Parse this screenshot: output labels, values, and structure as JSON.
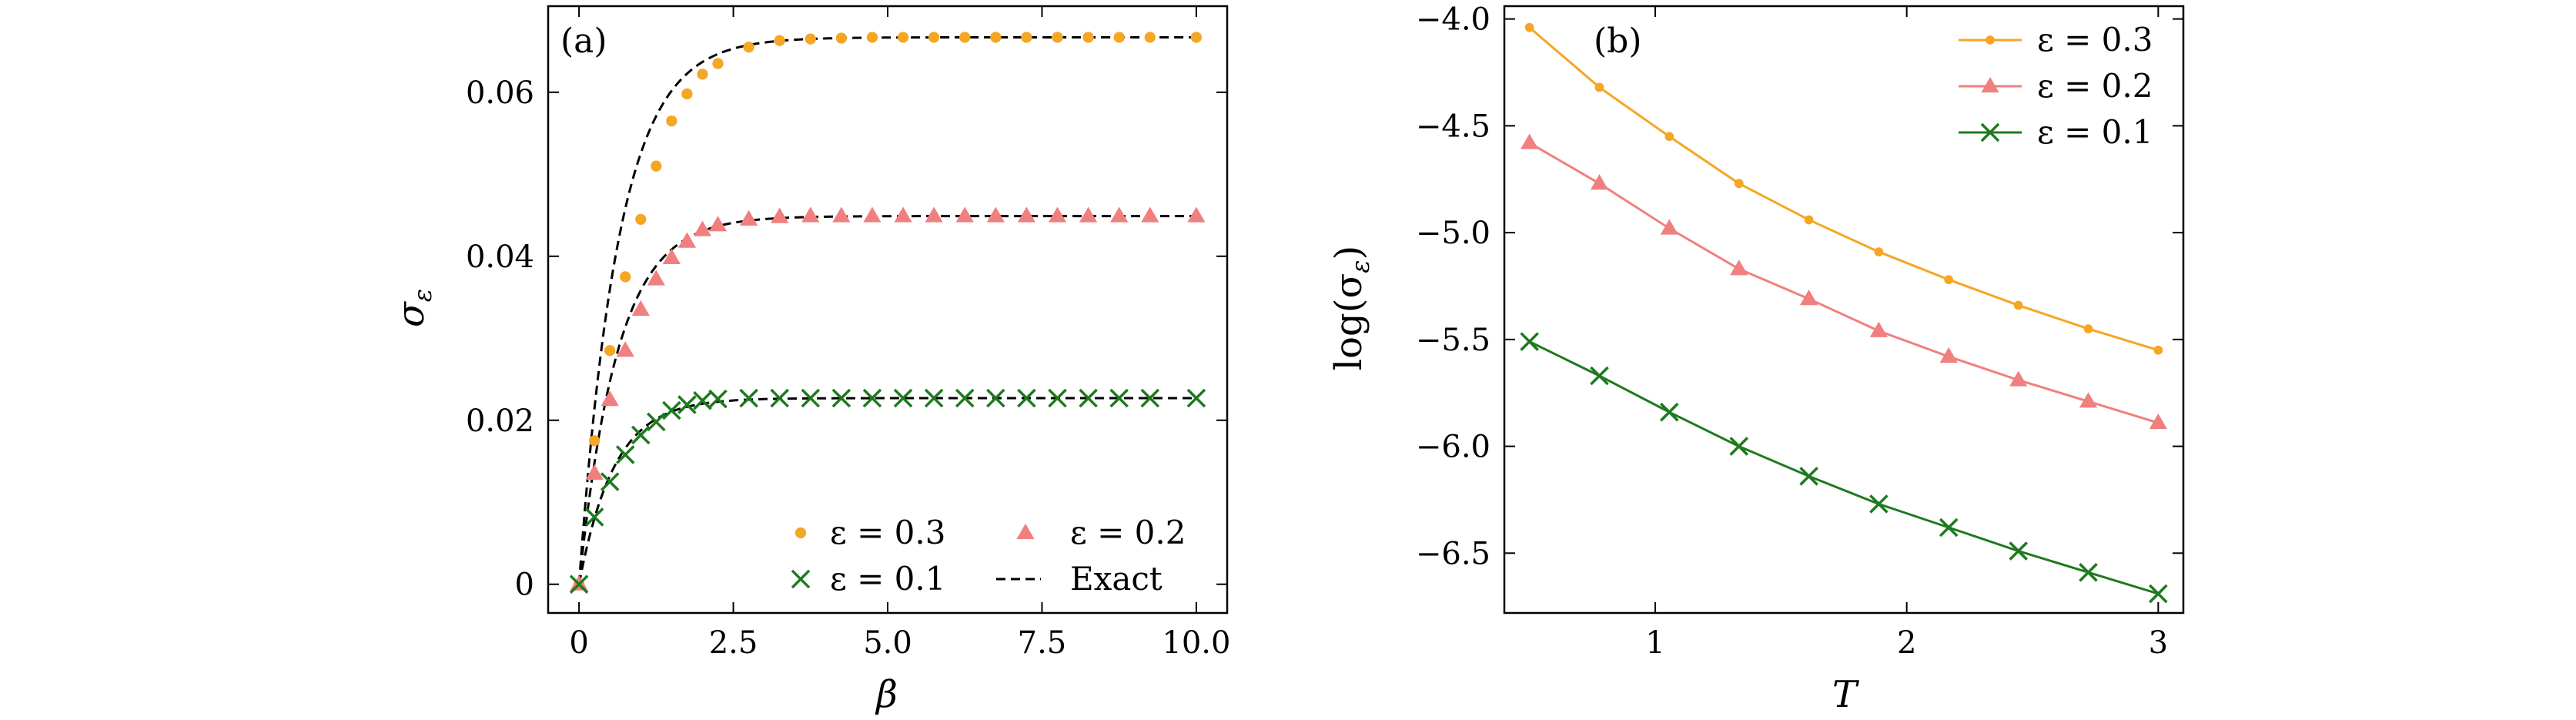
{
  "chart_data": [
    {
      "type": "scatter",
      "panel_label": "(a)",
      "xlabel": "β",
      "ylabel": "σ",
      "ylabel_sub": "ε",
      "xlim": [
        -0.5,
        10.5
      ],
      "ylim": [
        -0.0035,
        0.0705
      ],
      "xticks": [
        0,
        2.5,
        5.0,
        7.5,
        10.0
      ],
      "xtick_labels": [
        "0",
        "2.5",
        "5.0",
        "7.5",
        "10.0"
      ],
      "yticks": [
        0,
        0.02,
        0.04,
        0.06
      ],
      "ytick_labels": [
        "0",
        "0.02",
        "0.04",
        "0.06"
      ],
      "legend_position": "lower-right",
      "series": [
        {
          "name": "ε = 0.3",
          "color": "#f5a623",
          "marker": "circle",
          "x": [
            0,
            0.25,
            0.5,
            0.75,
            1.0,
            1.25,
            1.5,
            1.75,
            2.0,
            2.25,
            2.75,
            3.25,
            3.75,
            4.25,
            4.75,
            5.25,
            5.75,
            6.25,
            6.75,
            7.25,
            7.75,
            8.25,
            8.75,
            9.25,
            10.0
          ],
          "y": [
            0,
            0.0175,
            0.0285,
            0.0375,
            0.0445,
            0.051,
            0.0565,
            0.0598,
            0.0622,
            0.0635,
            0.0655,
            0.0663,
            0.0665,
            0.0666,
            0.0667,
            0.0667,
            0.0667,
            0.0667,
            0.0667,
            0.0667,
            0.0667,
            0.0667,
            0.0667,
            0.0667,
            0.0667
          ]
        },
        {
          "name": "ε = 0.2",
          "color": "#f08080",
          "marker": "triangle",
          "x": [
            0,
            0.25,
            0.5,
            0.75,
            1.0,
            1.25,
            1.5,
            1.75,
            2.0,
            2.25,
            2.75,
            3.25,
            3.75,
            4.25,
            4.75,
            5.25,
            5.75,
            6.25,
            6.75,
            7.25,
            7.75,
            8.25,
            8.75,
            9.25,
            10.0
          ],
          "y": [
            0,
            0.0135,
            0.0225,
            0.0285,
            0.0335,
            0.0372,
            0.0398,
            0.0418,
            0.0432,
            0.0438,
            0.0445,
            0.0448,
            0.0449,
            0.0449,
            0.0449,
            0.0449,
            0.0449,
            0.0449,
            0.0449,
            0.0449,
            0.0449,
            0.0449,
            0.0449,
            0.0449,
            0.0449
          ]
        },
        {
          "name": "ε = 0.1",
          "color": "#1e7a1e",
          "marker": "x",
          "x": [
            0,
            0.25,
            0.5,
            0.75,
            1.0,
            1.25,
            1.5,
            1.75,
            2.0,
            2.25,
            2.75,
            3.25,
            3.75,
            4.25,
            4.75,
            5.25,
            5.75,
            6.25,
            6.75,
            7.25,
            7.75,
            8.25,
            8.75,
            9.25,
            10.0
          ],
          "y": [
            0,
            0.0082,
            0.0125,
            0.0158,
            0.0182,
            0.0198,
            0.0212,
            0.0219,
            0.0224,
            0.0226,
            0.0227,
            0.0227,
            0.0227,
            0.0227,
            0.0227,
            0.0227,
            0.0227,
            0.0227,
            0.0227,
            0.0227,
            0.0227,
            0.0227,
            0.0227,
            0.0227,
            0.0227
          ]
        },
        {
          "name": "Exact",
          "color": "#000000",
          "marker": "dashed-line",
          "curves": [
            {
              "amplitude": 0.0667,
              "rate": 1.55
            },
            {
              "amplitude": 0.0449,
              "rate": 1.6
            },
            {
              "amplitude": 0.0227,
              "rate": 1.75
            }
          ]
        }
      ],
      "legend_order": [
        0,
        2,
        1,
        3
      ]
    },
    {
      "type": "line",
      "panel_label": "(b)",
      "xlabel": "T",
      "ylabel": "log(σ",
      "ylabel_sub": "ε",
      "ylabel_close": ")",
      "xlim": [
        0.4,
        3.1
      ],
      "ylim": [
        -6.78,
        -3.94
      ],
      "xticks": [
        1,
        2,
        3
      ],
      "xtick_labels": [
        "1",
        "2",
        "3"
      ],
      "yticks": [
        -4.0,
        -4.5,
        -5.0,
        -5.5,
        -6.0,
        -6.5
      ],
      "ytick_labels": [
        "−4.0",
        "−4.5",
        "−5.0",
        "−5.5",
        "−6.0",
        "−6.5"
      ],
      "legend_position": "top-right",
      "series": [
        {
          "name": "ε = 0.3",
          "color": "#f5a623",
          "marker": "circle",
          "x": [
            0.5,
            0.778,
            1.056,
            1.333,
            1.611,
            1.889,
            2.167,
            2.444,
            2.722,
            3.0
          ],
          "y": [
            -4.04,
            -4.32,
            -4.55,
            -4.77,
            -4.94,
            -5.09,
            -5.22,
            -5.34,
            -5.45,
            -5.55
          ]
        },
        {
          "name": "ε = 0.2",
          "color": "#f08080",
          "marker": "triangle",
          "x": [
            0.5,
            0.778,
            1.056,
            1.333,
            1.611,
            1.889,
            2.167,
            2.444,
            2.722,
            3.0
          ],
          "y": [
            -4.58,
            -4.77,
            -4.98,
            -5.17,
            -5.31,
            -5.46,
            -5.58,
            -5.69,
            -5.79,
            -5.89
          ]
        },
        {
          "name": "ε = 0.1",
          "color": "#1e7a1e",
          "marker": "x",
          "x": [
            0.5,
            0.778,
            1.056,
            1.333,
            1.611,
            1.889,
            2.167,
            2.444,
            2.722,
            3.0
          ],
          "y": [
            -5.51,
            -5.67,
            -5.84,
            -6.0,
            -6.14,
            -6.27,
            -6.38,
            -6.49,
            -6.59,
            -6.69
          ]
        }
      ]
    }
  ]
}
